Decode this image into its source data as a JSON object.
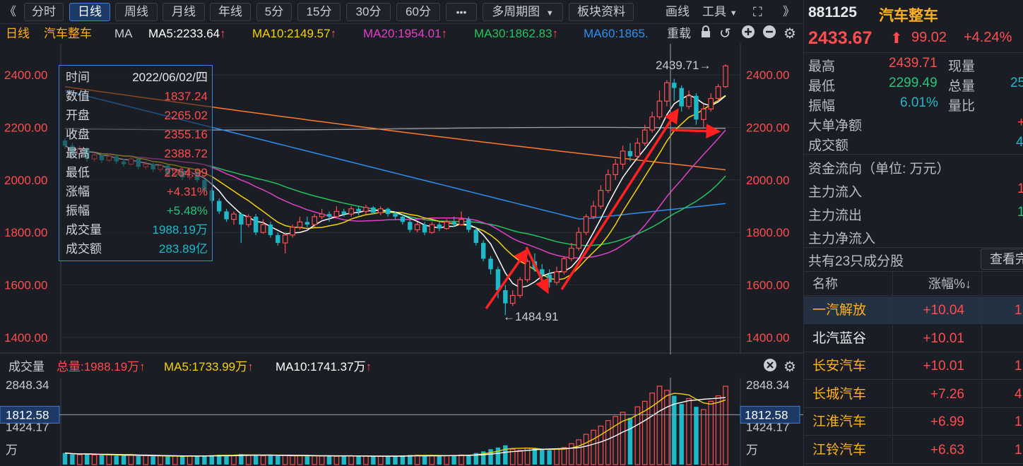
{
  "toolbar": {
    "collapse_label": "《",
    "tabs": [
      "分时",
      "日线",
      "周线",
      "月线",
      "年线",
      "5分",
      "15分",
      "30分",
      "60分"
    ],
    "active_tab": "日线",
    "more_label": "•••",
    "multi_period_label": "多周期图",
    "sector_label": "板块资料",
    "draw_label": "画线",
    "tools_label": "工具",
    "expand_label": "》"
  },
  "info_row": {
    "period": "日线",
    "name": "汽车整车",
    "ma_label": "MA",
    "ma5": "MA5:2233.64",
    "ma10": "MA10:2149.57",
    "ma20": "MA20:1954.01",
    "ma30": "MA30:1862.83",
    "ma60": "MA60:1865.",
    "reload_label": "重载"
  },
  "colors": {
    "up": "#ff4d4f",
    "down": "#1fb8c8",
    "ma5": "#ffffff",
    "ma10": "#f5d20a",
    "ma20": "#e040c8",
    "ma30": "#22c45e",
    "ma60": "#2f8ff0",
    "ma120": "#ff7a2a",
    "ma250": "#9aa0aa",
    "accent": "#3c7de0"
  },
  "price_axis": {
    "labels": [
      "2400.00",
      "2200.00",
      "2000.00",
      "1800.00",
      "1600.00",
      "1400.00"
    ],
    "min": 1400,
    "max": 2400
  },
  "annotations": {
    "high_label": "2439.71→",
    "low_label": "←1484.91"
  },
  "tooltip": {
    "rows": [
      {
        "k": "时间",
        "v": "2022/06/02/四",
        "color": "white"
      },
      {
        "k": "数值",
        "v": "1837.24",
        "color": "red"
      },
      {
        "k": "开盘",
        "v": "2265.02",
        "color": "red"
      },
      {
        "k": "收盘",
        "v": "2355.16",
        "color": "red"
      },
      {
        "k": "最高",
        "v": "2388.72",
        "color": "red"
      },
      {
        "k": "最低",
        "v": "2264.99",
        "color": "red"
      },
      {
        "k": "涨幅",
        "v": "+4.31%",
        "color": "red"
      },
      {
        "k": "振幅",
        "v": "+5.48%",
        "color": "green"
      },
      {
        "k": "成交量",
        "v": "1988.19万",
        "color": "cyan"
      },
      {
        "k": "成交额",
        "v": "283.89亿",
        "color": "cyan"
      }
    ]
  },
  "volume_row": {
    "label": "成交量",
    "total": "总量:1988.19万",
    "ma5": "MA5:1733.99万",
    "ma10": "MA10:1741.37万"
  },
  "volume_axis": {
    "top": "2848.34",
    "cursor": "1812.58",
    "mid": "1424.17",
    "unit": "万"
  },
  "chart_data": {
    "type": "candlestick",
    "title": "汽车整车",
    "ylim": [
      1400,
      2450
    ],
    "candles": [
      [
        2150,
        2130,
        2160,
        2120
      ],
      [
        2130,
        2100,
        2140,
        2090
      ],
      [
        2100,
        2120,
        2130,
        2095
      ],
      [
        2120,
        2080,
        2125,
        2070
      ],
      [
        2080,
        2095,
        2105,
        2070
      ],
      [
        2095,
        2075,
        2100,
        2065
      ],
      [
        2075,
        2090,
        2100,
        2068
      ],
      [
        2090,
        2070,
        2095,
        2060
      ],
      [
        2070,
        2060,
        2080,
        2050
      ],
      [
        2060,
        2080,
        2090,
        2055
      ],
      [
        2080,
        2050,
        2085,
        2040
      ],
      [
        2050,
        2060,
        2070,
        2040
      ],
      [
        2060,
        2040,
        2065,
        2030
      ],
      [
        2040,
        2055,
        2060,
        2030
      ],
      [
        2055,
        2020,
        2060,
        2010
      ],
      [
        2020,
        2035,
        2045,
        2010
      ],
      [
        2035,
        2010,
        2040,
        2000
      ],
      [
        2010,
        2030,
        2040,
        2000
      ],
      [
        2030,
        2000,
        2035,
        1990
      ],
      [
        2000,
        1960,
        2005,
        1950
      ],
      [
        1960,
        1920,
        1970,
        1910
      ],
      [
        1920,
        1880,
        1930,
        1870
      ],
      [
        1880,
        1850,
        1890,
        1840
      ],
      [
        1850,
        1870,
        1880,
        1830
      ],
      [
        1870,
        1830,
        1875,
        1760
      ],
      [
        1830,
        1860,
        1870,
        1820
      ],
      [
        1860,
        1800,
        1870,
        1790
      ],
      [
        1800,
        1830,
        1850,
        1795
      ],
      [
        1830,
        1790,
        1840,
        1780
      ],
      [
        1790,
        1760,
        1800,
        1750
      ],
      [
        1760,
        1790,
        1800,
        1720
      ],
      [
        1790,
        1820,
        1830,
        1780
      ],
      [
        1820,
        1840,
        1860,
        1810
      ],
      [
        1840,
        1830,
        1860,
        1820
      ],
      [
        1830,
        1860,
        1870,
        1820
      ],
      [
        1860,
        1870,
        1890,
        1850
      ],
      [
        1870,
        1860,
        1880,
        1840
      ],
      [
        1860,
        1880,
        1900,
        1855
      ],
      [
        1880,
        1870,
        1890,
        1860
      ],
      [
        1870,
        1890,
        1900,
        1860
      ],
      [
        1890,
        1880,
        1900,
        1865
      ],
      [
        1880,
        1895,
        1905,
        1870
      ],
      [
        1895,
        1875,
        1900,
        1870
      ],
      [
        1875,
        1890,
        1900,
        1865
      ],
      [
        1890,
        1870,
        1895,
        1860
      ],
      [
        1870,
        1860,
        1880,
        1850
      ],
      [
        1860,
        1840,
        1870,
        1830
      ],
      [
        1840,
        1810,
        1850,
        1800
      ],
      [
        1810,
        1830,
        1840,
        1800
      ],
      [
        1830,
        1800,
        1840,
        1790
      ],
      [
        1800,
        1830,
        1840,
        1795
      ],
      [
        1830,
        1815,
        1845,
        1805
      ],
      [
        1815,
        1840,
        1850,
        1810
      ],
      [
        1840,
        1830,
        1860,
        1820
      ],
      [
        1830,
        1850,
        1880,
        1825
      ],
      [
        1850,
        1810,
        1860,
        1800
      ],
      [
        1810,
        1760,
        1820,
        1750
      ],
      [
        1760,
        1700,
        1770,
        1690
      ],
      [
        1700,
        1660,
        1710,
        1640
      ],
      [
        1660,
        1580,
        1670,
        1550
      ],
      [
        1580,
        1530,
        1600,
        1485
      ],
      [
        1530,
        1560,
        1580,
        1520
      ],
      [
        1560,
        1620,
        1630,
        1550
      ],
      [
        1620,
        1690,
        1700,
        1610
      ],
      [
        1690,
        1660,
        1720,
        1650
      ],
      [
        1660,
        1640,
        1680,
        1620
      ],
      [
        1640,
        1610,
        1660,
        1590
      ],
      [
        1610,
        1650,
        1670,
        1600
      ],
      [
        1650,
        1700,
        1710,
        1640
      ],
      [
        1700,
        1740,
        1760,
        1690
      ],
      [
        1740,
        1800,
        1820,
        1730
      ],
      [
        1800,
        1860,
        1870,
        1790
      ],
      [
        1860,
        1900,
        1920,
        1850
      ],
      [
        1900,
        1960,
        1980,
        1890
      ],
      [
        1960,
        2020,
        2040,
        1950
      ],
      [
        2020,
        2060,
        2080,
        2000
      ],
      [
        2060,
        2110,
        2130,
        2040
      ],
      [
        2110,
        2090,
        2140,
        2070
      ],
      [
        2090,
        2140,
        2160,
        2080
      ],
      [
        2140,
        2190,
        2210,
        2130
      ],
      [
        2190,
        2240,
        2260,
        2180
      ],
      [
        2240,
        2300,
        2340,
        2230
      ],
      [
        2300,
        2370,
        2380,
        2280
      ],
      [
        2370,
        2350,
        2385,
        2300
      ],
      [
        2350,
        2280,
        2360,
        2260
      ],
      [
        2280,
        2320,
        2340,
        2270
      ],
      [
        2320,
        2230,
        2330,
        2210
      ],
      [
        2230,
        2270,
        2290,
        2200
      ],
      [
        2270,
        2310,
        2330,
        2260
      ],
      [
        2310,
        2355,
        2365,
        2300
      ],
      [
        2355,
        2434,
        2440,
        2350
      ]
    ],
    "volume": [
      420,
      380,
      360,
      390,
      350,
      340,
      360,
      330,
      320,
      350,
      310,
      330,
      300,
      320,
      290,
      310,
      300,
      320,
      310,
      330,
      340,
      360,
      350,
      330,
      380,
      340,
      360,
      320,
      330,
      310,
      340,
      320,
      330,
      300,
      320,
      310,
      330,
      300,
      310,
      320,
      300,
      310,
      290,
      300,
      310,
      320,
      330,
      350,
      340,
      330,
      320,
      310,
      330,
      340,
      350,
      360,
      420,
      480,
      560,
      620,
      700,
      560,
      520,
      600,
      580,
      540,
      520,
      560,
      620,
      760,
      900,
      1100,
      1250,
      1400,
      1600,
      1750,
      1900,
      1700,
      2100,
      2300,
      2600,
      2850,
      2700,
      2500,
      2200,
      2400,
      2100,
      2000,
      2300,
      2500,
      2848
    ]
  },
  "quote": {
    "code": "881125",
    "name": "汽车整车",
    "price": "2433.67",
    "change": "99.02",
    "pct": "+4.24%",
    "high_label": "最高",
    "high": "2439.71",
    "low_label": "最低",
    "low": "2299.49",
    "amp_label": "振幅",
    "amp": "6.01%",
    "cur_vol_label": "现量",
    "total_vol_label": "总量",
    "total_vol_partial": "25",
    "vol_ratio_label": "量比",
    "big_net_label": "大单净额",
    "big_net_partial": "+",
    "turnover_label": "成交额",
    "turnover_partial": "4"
  },
  "capital_flow": {
    "title": "资金流向（单位: 万元）",
    "main_in": "主力流入",
    "main_in_partial": "1",
    "main_out": "主力流出",
    "main_out_partial": "1",
    "main_net": "主力净流入"
  },
  "constituents": {
    "title": "共有23只成分股",
    "view_btn": "查看完",
    "col_name": "名称",
    "col_pct": "涨幅%↓",
    "rows": [
      {
        "name": "一汽解放",
        "pct": "+10.04",
        "extra": "1"
      },
      {
        "name": "北汽蓝谷",
        "pct": "+10.01",
        "extra": ""
      },
      {
        "name": "长安汽车",
        "pct": "+10.01",
        "extra": "1"
      },
      {
        "name": "长城汽车",
        "pct": "+7.26",
        "extra": "4"
      },
      {
        "name": "江淮汽车",
        "pct": "+6.99",
        "extra": "1"
      },
      {
        "name": "江铃汽车",
        "pct": "+6.63",
        "extra": "1"
      }
    ]
  }
}
